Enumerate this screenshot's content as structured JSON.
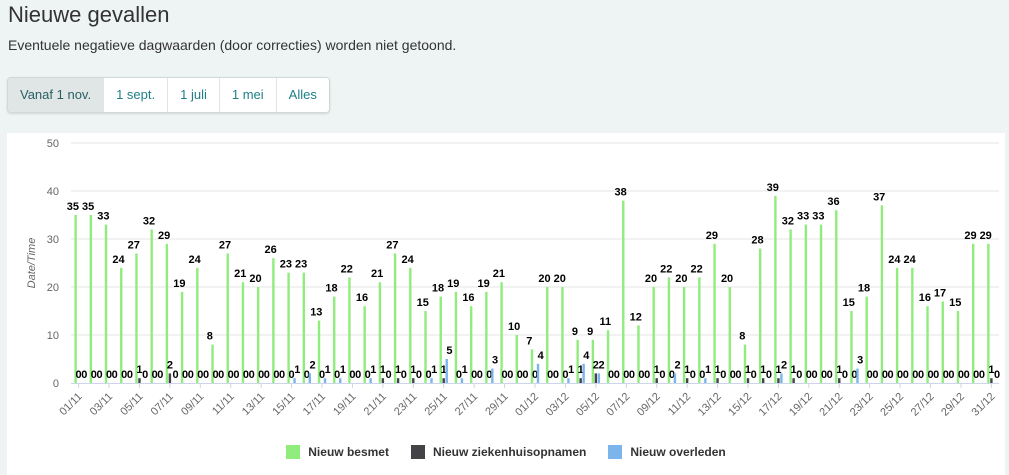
{
  "header": {
    "title": "Nieuwe gevallen",
    "subtitle": "Eventuele negatieve dagwaarden (door correcties) worden niet getoond."
  },
  "tabs": [
    {
      "label": "Vanaf 1 nov.",
      "active": true
    },
    {
      "label": "1 sept.",
      "active": false
    },
    {
      "label": "1 juli",
      "active": false
    },
    {
      "label": "1 mei",
      "active": false
    },
    {
      "label": "Alles",
      "active": false
    }
  ],
  "chart_data": {
    "type": "bar",
    "title": "",
    "xlabel": "",
    "ylabel": "Date/Time",
    "ylim": [
      0,
      50
    ],
    "yticks": [
      0,
      10,
      20,
      30,
      40,
      50
    ],
    "grid": true,
    "legend_position": "bottom",
    "categories": [
      "01/11",
      "02/11",
      "03/11",
      "04/11",
      "05/11",
      "06/11",
      "07/11",
      "08/11",
      "09/11",
      "10/11",
      "11/11",
      "12/11",
      "13/11",
      "14/11",
      "15/11",
      "16/11",
      "17/11",
      "18/11",
      "19/11",
      "20/11",
      "21/11",
      "22/11",
      "23/11",
      "24/11",
      "25/11",
      "26/11",
      "27/11",
      "28/11",
      "29/11",
      "30/11",
      "01/12",
      "02/12",
      "03/12",
      "04/12",
      "05/12",
      "06/12",
      "07/12",
      "08/12",
      "09/12",
      "10/12",
      "11/12",
      "12/12",
      "13/12",
      "14/12",
      "15/12",
      "16/12",
      "17/12",
      "18/12",
      "19/12",
      "20/12",
      "21/12",
      "22/12",
      "23/12",
      "24/12",
      "25/12",
      "26/12",
      "27/12",
      "28/12",
      "29/12",
      "30/12",
      "31/12"
    ],
    "xtick_labels": [
      "01/11",
      "03/11",
      "05/11",
      "07/11",
      "09/11",
      "11/11",
      "13/11",
      "15/11",
      "17/11",
      "19/11",
      "21/11",
      "23/11",
      "25/11",
      "27/11",
      "29/11",
      "01/12",
      "03/12",
      "05/12",
      "07/12",
      "09/12",
      "11/12",
      "13/12",
      "15/12",
      "17/12",
      "19/12",
      "21/12",
      "23/12",
      "25/12",
      "27/12",
      "29/12",
      "31/12"
    ],
    "series": [
      {
        "name": "Nieuw besmet",
        "color": "#90ed7d",
        "values": [
          35,
          35,
          33,
          24,
          27,
          32,
          29,
          19,
          24,
          8,
          27,
          21,
          20,
          26,
          23,
          23,
          13,
          18,
          22,
          16,
          21,
          27,
          24,
          15,
          18,
          19,
          16,
          19,
          21,
          10,
          7,
          20,
          20,
          9,
          9,
          11,
          38,
          12,
          20,
          22,
          20,
          22,
          29,
          20,
          8,
          28,
          39,
          32,
          33,
          33,
          36,
          15,
          18,
          37,
          24,
          24,
          16,
          17,
          15,
          29,
          29
        ]
      },
      {
        "name": "Nieuw ziekenhuisopnamen",
        "color": "#434348",
        "values": [
          0,
          0,
          0,
          0,
          1,
          0,
          2,
          0,
          0,
          0,
          0,
          0,
          0,
          0,
          0,
          0,
          0,
          0,
          0,
          0,
          1,
          1,
          1,
          0,
          1,
          0,
          0,
          0,
          0,
          0,
          0,
          0,
          0,
          1,
          2,
          0,
          0,
          0,
          1,
          0,
          1,
          0,
          1,
          0,
          1,
          1,
          1,
          1,
          0,
          0,
          1,
          0,
          0,
          0,
          0,
          0,
          0,
          0,
          0,
          0,
          1
        ]
      },
      {
        "name": "Nieuw overleden",
        "color": "#7cb5ec",
        "values": [
          0,
          0,
          0,
          0,
          0,
          0,
          0,
          0,
          0,
          0,
          0,
          0,
          0,
          0,
          1,
          2,
          1,
          1,
          0,
          1,
          0,
          0,
          0,
          1,
          5,
          1,
          0,
          3,
          0,
          0,
          4,
          0,
          1,
          4,
          2,
          0,
          0,
          0,
          0,
          2,
          0,
          1,
          0,
          0,
          0,
          0,
          2,
          0,
          0,
          0,
          0,
          3,
          0,
          0,
          0,
          0,
          0,
          0,
          0,
          0,
          0
        ]
      }
    ]
  }
}
